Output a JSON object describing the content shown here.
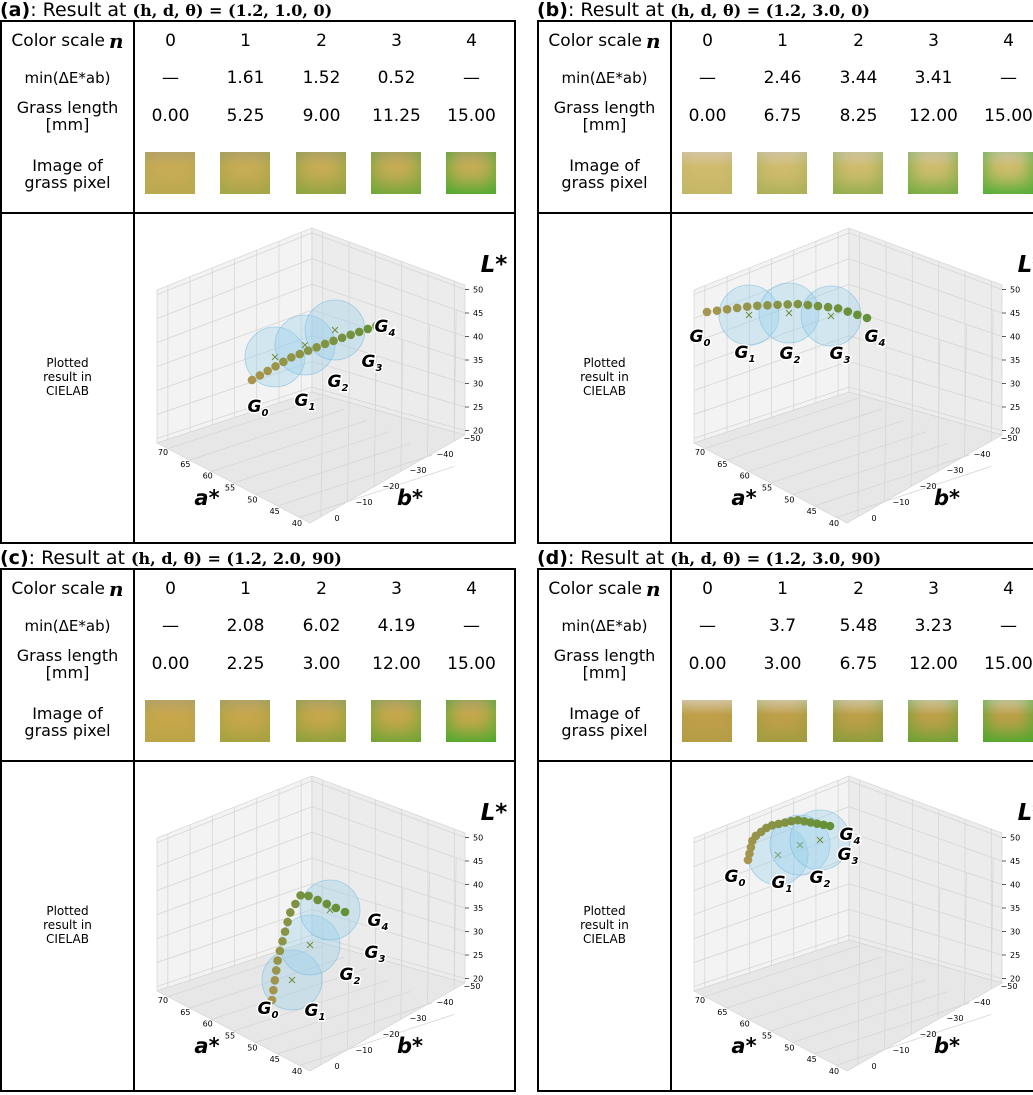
{
  "shared": {
    "title_text": ": Result at ",
    "row_headers": {
      "color_scale": "Color scale",
      "n_symbol": "n",
      "min_delta_e": "min(ΔE*ab)",
      "grass_length": "Grass length [mm]",
      "image": "Image of grass pixel",
      "plotted": "Plotted result in CIELAB"
    },
    "color_scale_values": [
      0,
      1,
      2,
      3,
      4
    ],
    "axes": {
      "a_label": "a*",
      "b_label": "b*",
      "L_label": "L*",
      "a_ticks": [
        70,
        65,
        60,
        55,
        50,
        45,
        40
      ],
      "b_ticks": [
        0,
        {
          "value": -10,
          "label": "−10"
        },
        {
          "value": -20,
          "label": "−20"
        },
        {
          "value": -30,
          "label": "−30"
        },
        {
          "value": -40,
          "label": "−40"
        },
        {
          "value": -50,
          "label": "−50"
        }
      ],
      "L_ticks": [
        20,
        25,
        30,
        35,
        40,
        45,
        50
      ]
    },
    "group_labels": [
      [
        "G",
        "0"
      ],
      [
        "G",
        "1"
      ],
      [
        "G",
        "2"
      ],
      [
        "G",
        "3"
      ],
      [
        "G",
        "4"
      ]
    ]
  },
  "panels": [
    {
      "label": "(a)",
      "params": "(h, d, θ) = (1.2, 1.0, 0)",
      "min_delta_e": [
        "—",
        "1.61",
        "1.52",
        "0.52",
        "—"
      ],
      "grass_length": [
        "0.00",
        "5.25",
        "9.00",
        "11.25",
        "15.00"
      ]
    },
    {
      "label": "(b)",
      "params": "(h, d, θ) = (1.2, 3.0, 0)",
      "min_delta_e": [
        "—",
        "2.46",
        "3.44",
        "3.41",
        "—"
      ],
      "grass_length": [
        "0.00",
        "6.75",
        "8.25",
        "12.00",
        "15.00"
      ]
    },
    {
      "label": "(c)",
      "params": "(h, d, θ) = (1.2, 2.0, 90)",
      "min_delta_e": [
        "—",
        "2.08",
        "6.02",
        "4.19",
        "—"
      ],
      "grass_length": [
        "0.00",
        "2.25",
        "3.00",
        "12.00",
        "15.00"
      ]
    },
    {
      "label": "(d)",
      "params": "(h, d, θ) = (1.2, 3.0, 90)",
      "min_delta_e": [
        "—",
        "3.7",
        "5.48",
        "3.23",
        "—"
      ],
      "grass_length": [
        "0.00",
        "3.00",
        "6.75",
        "12.00",
        "15.00"
      ]
    }
  ]
}
